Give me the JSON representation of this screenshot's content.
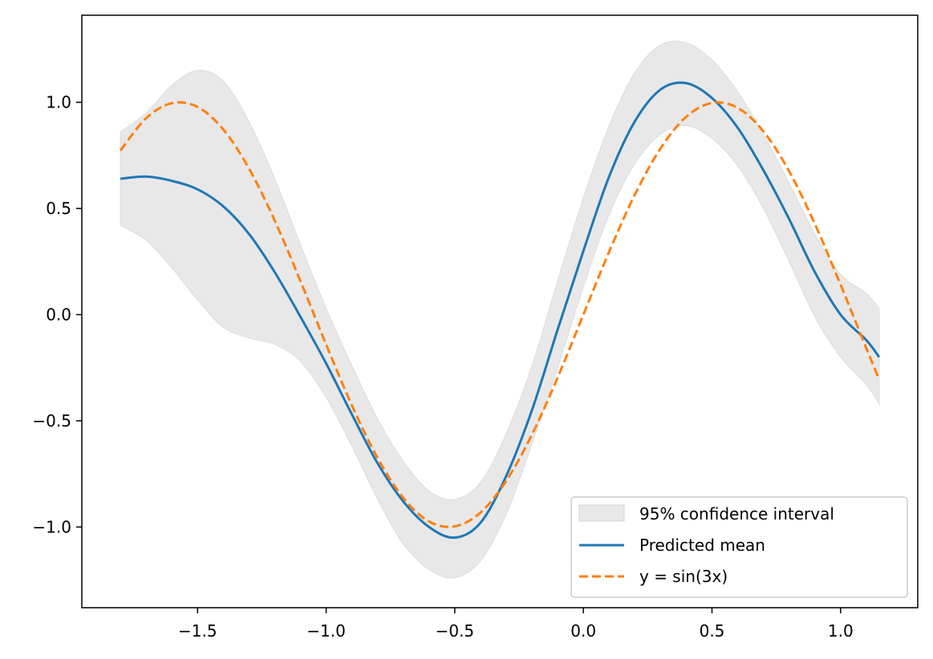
{
  "chart_data": {
    "type": "line",
    "title": "",
    "xlabel": "",
    "ylabel": "",
    "xlim": [
      -1.95,
      1.3
    ],
    "ylim": [
      -1.38,
      1.41
    ],
    "grid": false,
    "legend_position": "lower-right",
    "x_ticks": [
      -1.5,
      -1.0,
      -0.5,
      0.0,
      0.5,
      1.0
    ],
    "x_tick_labels": [
      "−1.5",
      "−1.0",
      "−0.5",
      "0.0",
      "0.5",
      "1.0"
    ],
    "y_ticks": [
      -1.0,
      -0.5,
      0.0,
      0.5,
      1.0
    ],
    "y_tick_labels": [
      "−1.0",
      "−0.5",
      "0.0",
      "0.5",
      "1.0"
    ],
    "x": [
      -1.8,
      -1.7,
      -1.6,
      -1.5,
      -1.4,
      -1.3,
      -1.2,
      -1.1,
      -1.0,
      -0.9,
      -0.8,
      -0.7,
      -0.6,
      -0.5,
      -0.4,
      -0.3,
      -0.2,
      -0.1,
      0.0,
      0.1,
      0.2,
      0.3,
      0.4,
      0.5,
      0.6,
      0.7,
      0.8,
      0.9,
      1.0,
      1.1,
      1.15
    ],
    "series": [
      {
        "name": "95% confidence interval",
        "kind": "band",
        "color": "#e8e8e8",
        "lower": [
          0.42,
          0.35,
          0.22,
          0.07,
          -0.06,
          -0.11,
          -0.14,
          -0.22,
          -0.39,
          -0.62,
          -0.87,
          -1.08,
          -1.2,
          -1.24,
          -1.16,
          -0.94,
          -0.61,
          -0.25,
          0.13,
          0.47,
          0.71,
          0.85,
          0.89,
          0.83,
          0.7,
          0.5,
          0.25,
          -0.01,
          -0.2,
          -0.33,
          -0.42
        ],
        "upper": [
          0.86,
          0.95,
          1.08,
          1.15,
          1.1,
          0.91,
          0.64,
          0.33,
          0.03,
          -0.24,
          -0.49,
          -0.69,
          -0.83,
          -0.87,
          -0.79,
          -0.56,
          -0.24,
          0.16,
          0.55,
          0.89,
          1.14,
          1.27,
          1.28,
          1.2,
          1.05,
          0.85,
          0.62,
          0.38,
          0.19,
          0.1,
          0.03
        ]
      },
      {
        "name": "Predicted mean",
        "kind": "line",
        "color": "#1f77b4",
        "values": [
          0.64,
          0.65,
          0.63,
          0.59,
          0.51,
          0.38,
          0.2,
          -0.01,
          -0.23,
          -0.47,
          -0.7,
          -0.88,
          -1.0,
          -1.05,
          -0.98,
          -0.76,
          -0.45,
          -0.07,
          0.3,
          0.65,
          0.91,
          1.06,
          1.09,
          1.02,
          0.88,
          0.68,
          0.45,
          0.2,
          0.0,
          -0.12,
          -0.2
        ],
        "dash": "solid"
      },
      {
        "name": "y = sin(3x)",
        "kind": "line",
        "color": "#ff7f0e",
        "values": [
          0.773,
          0.925,
          0.996,
          0.978,
          0.872,
          0.688,
          0.443,
          0.158,
          -0.141,
          -0.427,
          -0.675,
          -0.863,
          -0.974,
          -0.997,
          -0.932,
          -0.783,
          -0.565,
          -0.296,
          0.0,
          0.296,
          0.565,
          0.783,
          0.932,
          0.997,
          0.974,
          0.863,
          0.675,
          0.427,
          0.141,
          -0.158,
          -0.305
        ],
        "dash": "dashed"
      }
    ]
  }
}
